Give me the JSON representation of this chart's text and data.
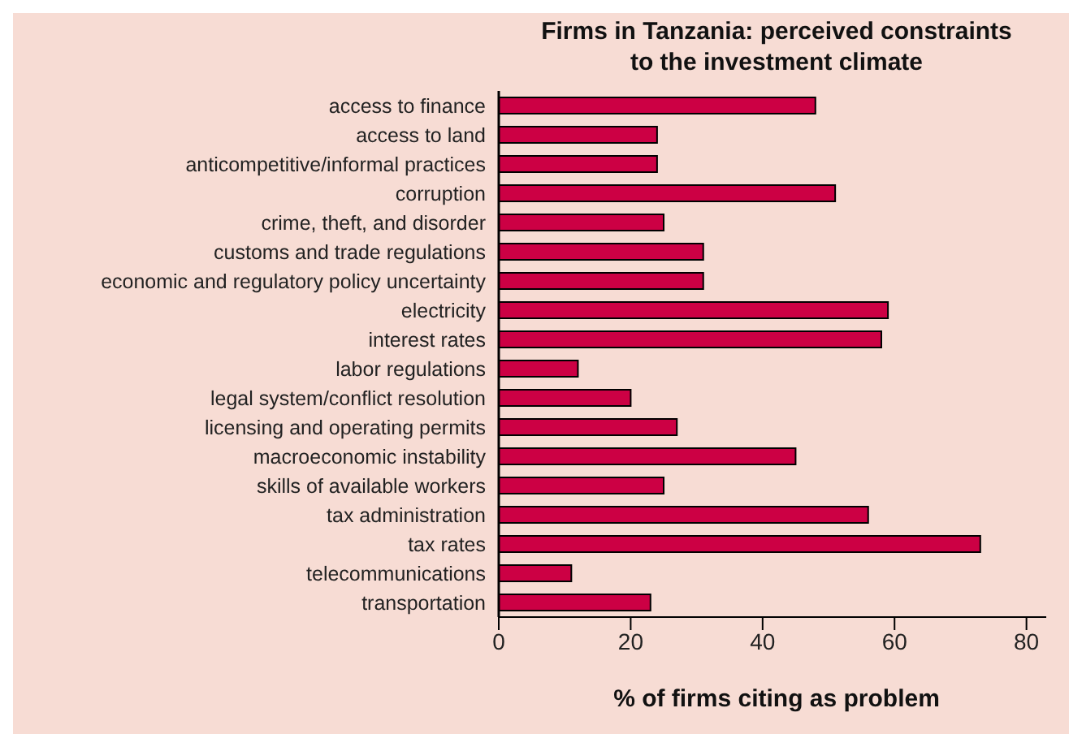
{
  "chart_data": {
    "type": "bar",
    "orientation": "horizontal",
    "title": "Firms in Tanzania: perceived constraints\nto the investment climate",
    "xlabel": "% of firms citing as problem",
    "categories": [
      "access to finance",
      "access to land",
      "anticompetitive/informal practices",
      "corruption",
      "crime, theft, and disorder",
      "customs and trade regulations",
      "economic and regulatory policy uncertainty",
      "electricity",
      "interest rates",
      "labor regulations",
      "legal system/conflict resolution",
      "licensing and operating permits",
      "macroeconomic instability",
      "skills of available workers",
      "tax administration",
      "tax rates",
      "telecommunications",
      "transportation"
    ],
    "values": [
      48,
      24,
      24,
      51,
      25,
      31,
      31,
      59,
      58,
      12,
      20,
      27,
      45,
      25,
      56,
      73,
      11,
      23
    ],
    "color": "#cc0044",
    "xlim": [
      0,
      83
    ],
    "xticks": [
      0,
      20,
      40,
      60,
      80
    ],
    "grid": false,
    "legend": false
  }
}
